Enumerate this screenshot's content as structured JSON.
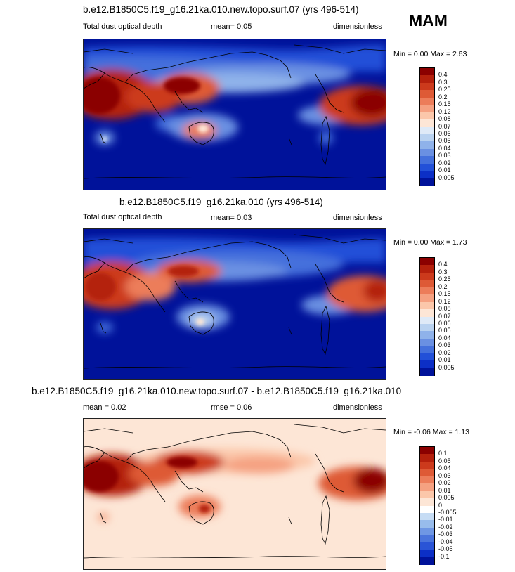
{
  "season": "MAM",
  "panels": [
    {
      "title": "b.e12.B1850C5.f19_g16.21ka.010.new.topo.surf.07 (yrs 496-514)",
      "left_label": "Total dust optical depth",
      "center_label": "mean=   0.05",
      "right_label": "dimensionless",
      "minmax": "Min =   0.00 Max =   2.63",
      "colorbar_labels": [
        "0.4",
        "0.3",
        "0.25",
        "0.2",
        "0.15",
        "0.12",
        "0.08",
        "0.07",
        "0.06",
        "0.05",
        "0.04",
        "0.03",
        "0.02",
        "0.01",
        "0.005"
      ],
      "colorbar_colors": [
        "#8b0000",
        "#b4200c",
        "#cc3a1c",
        "#de5a36",
        "#ec7d5a",
        "#f5a181",
        "#fbc7aa",
        "#fde6d6",
        "#dfeaf7",
        "#b9d2f0",
        "#8fb2ea",
        "#6a90e2",
        "#4470dc",
        "#2250d8",
        "#0c2fc6",
        "#00129a"
      ],
      "background": "#00129a"
    },
    {
      "title": "b.e12.B1850C5.f19_g16.21ka.010 (yrs 496-514)",
      "left_label": "Total dust optical depth",
      "center_label": "mean=   0.03",
      "right_label": "dimensionless",
      "minmax": "Min =   0.00 Max =   1.73",
      "colorbar_labels": [
        "0.4",
        "0.3",
        "0.25",
        "0.2",
        "0.15",
        "0.12",
        "0.08",
        "0.07",
        "0.06",
        "0.05",
        "0.04",
        "0.03",
        "0.02",
        "0.01",
        "0.005"
      ],
      "colorbar_colors": [
        "#8b0000",
        "#b4200c",
        "#cc3a1c",
        "#de5a36",
        "#ec7d5a",
        "#f5a181",
        "#fbc7aa",
        "#fde6d6",
        "#dfeaf7",
        "#b9d2f0",
        "#8fb2ea",
        "#6a90e2",
        "#4470dc",
        "#2250d8",
        "#0c2fc6",
        "#00129a"
      ],
      "background": "#00129a"
    },
    {
      "title": "b.e12.B1850C5.f19_g16.21ka.010.new.topo.surf.07 - b.e12.B1850C5.f19_g16.21ka.010",
      "left_label": "mean =   0.02",
      "center_label": "rmse =   0.06",
      "right_label": "dimensionless",
      "minmax": "Min =  -0.06 Max =   1.13",
      "colorbar_labels": [
        "0.1",
        "0.05",
        "0.04",
        "0.03",
        "0.02",
        "0.01",
        "0.005",
        "0",
        "-0.005",
        "-0.01",
        "-0.02",
        "-0.03",
        "-0.04",
        "-0.05",
        "-0.1"
      ],
      "colorbar_colors": [
        "#8b0000",
        "#b4200c",
        "#cc3a1c",
        "#de5a36",
        "#ec7d5a",
        "#f5a181",
        "#fbc7aa",
        "#fde6d6",
        "#ffffff",
        "#c6dcf4",
        "#98bcec",
        "#6f97e4",
        "#4a74dc",
        "#2a54d6",
        "#0c2fc6",
        "#00129a"
      ],
      "background": "#fde6d6"
    }
  ],
  "chart_data": [
    {
      "type": "heatmap",
      "title": "b.e12.B1850C5.f19_g16.21ka.010.new.topo.surf.07 (yrs 496-514)",
      "variable": "Total dust optical depth",
      "units": "dimensionless",
      "mean": 0.05,
      "min": 0.0,
      "max": 2.63,
      "levels": [
        0.005,
        0.01,
        0.02,
        0.03,
        0.04,
        0.05,
        0.06,
        0.07,
        0.08,
        0.12,
        0.15,
        0.2,
        0.25,
        0.3,
        0.4
      ]
    },
    {
      "type": "heatmap",
      "title": "b.e12.B1850C5.f19_g16.21ka.010 (yrs 496-514)",
      "variable": "Total dust optical depth",
      "units": "dimensionless",
      "mean": 0.03,
      "min": 0.0,
      "max": 1.73,
      "levels": [
        0.005,
        0.01,
        0.02,
        0.03,
        0.04,
        0.05,
        0.06,
        0.07,
        0.08,
        0.12,
        0.15,
        0.2,
        0.25,
        0.3,
        0.4
      ]
    },
    {
      "type": "heatmap",
      "title": "b.e12.B1850C5.f19_g16.21ka.010.new.topo.surf.07 - b.e12.B1850C5.f19_g16.21ka.010",
      "units": "dimensionless",
      "mean": 0.02,
      "rmse": 0.06,
      "min": -0.06,
      "max": 1.13,
      "levels": [
        -0.1,
        -0.05,
        -0.04,
        -0.03,
        -0.02,
        -0.01,
        -0.005,
        0,
        0.005,
        0.01,
        0.02,
        0.03,
        0.04,
        0.05,
        0.1
      ]
    }
  ]
}
